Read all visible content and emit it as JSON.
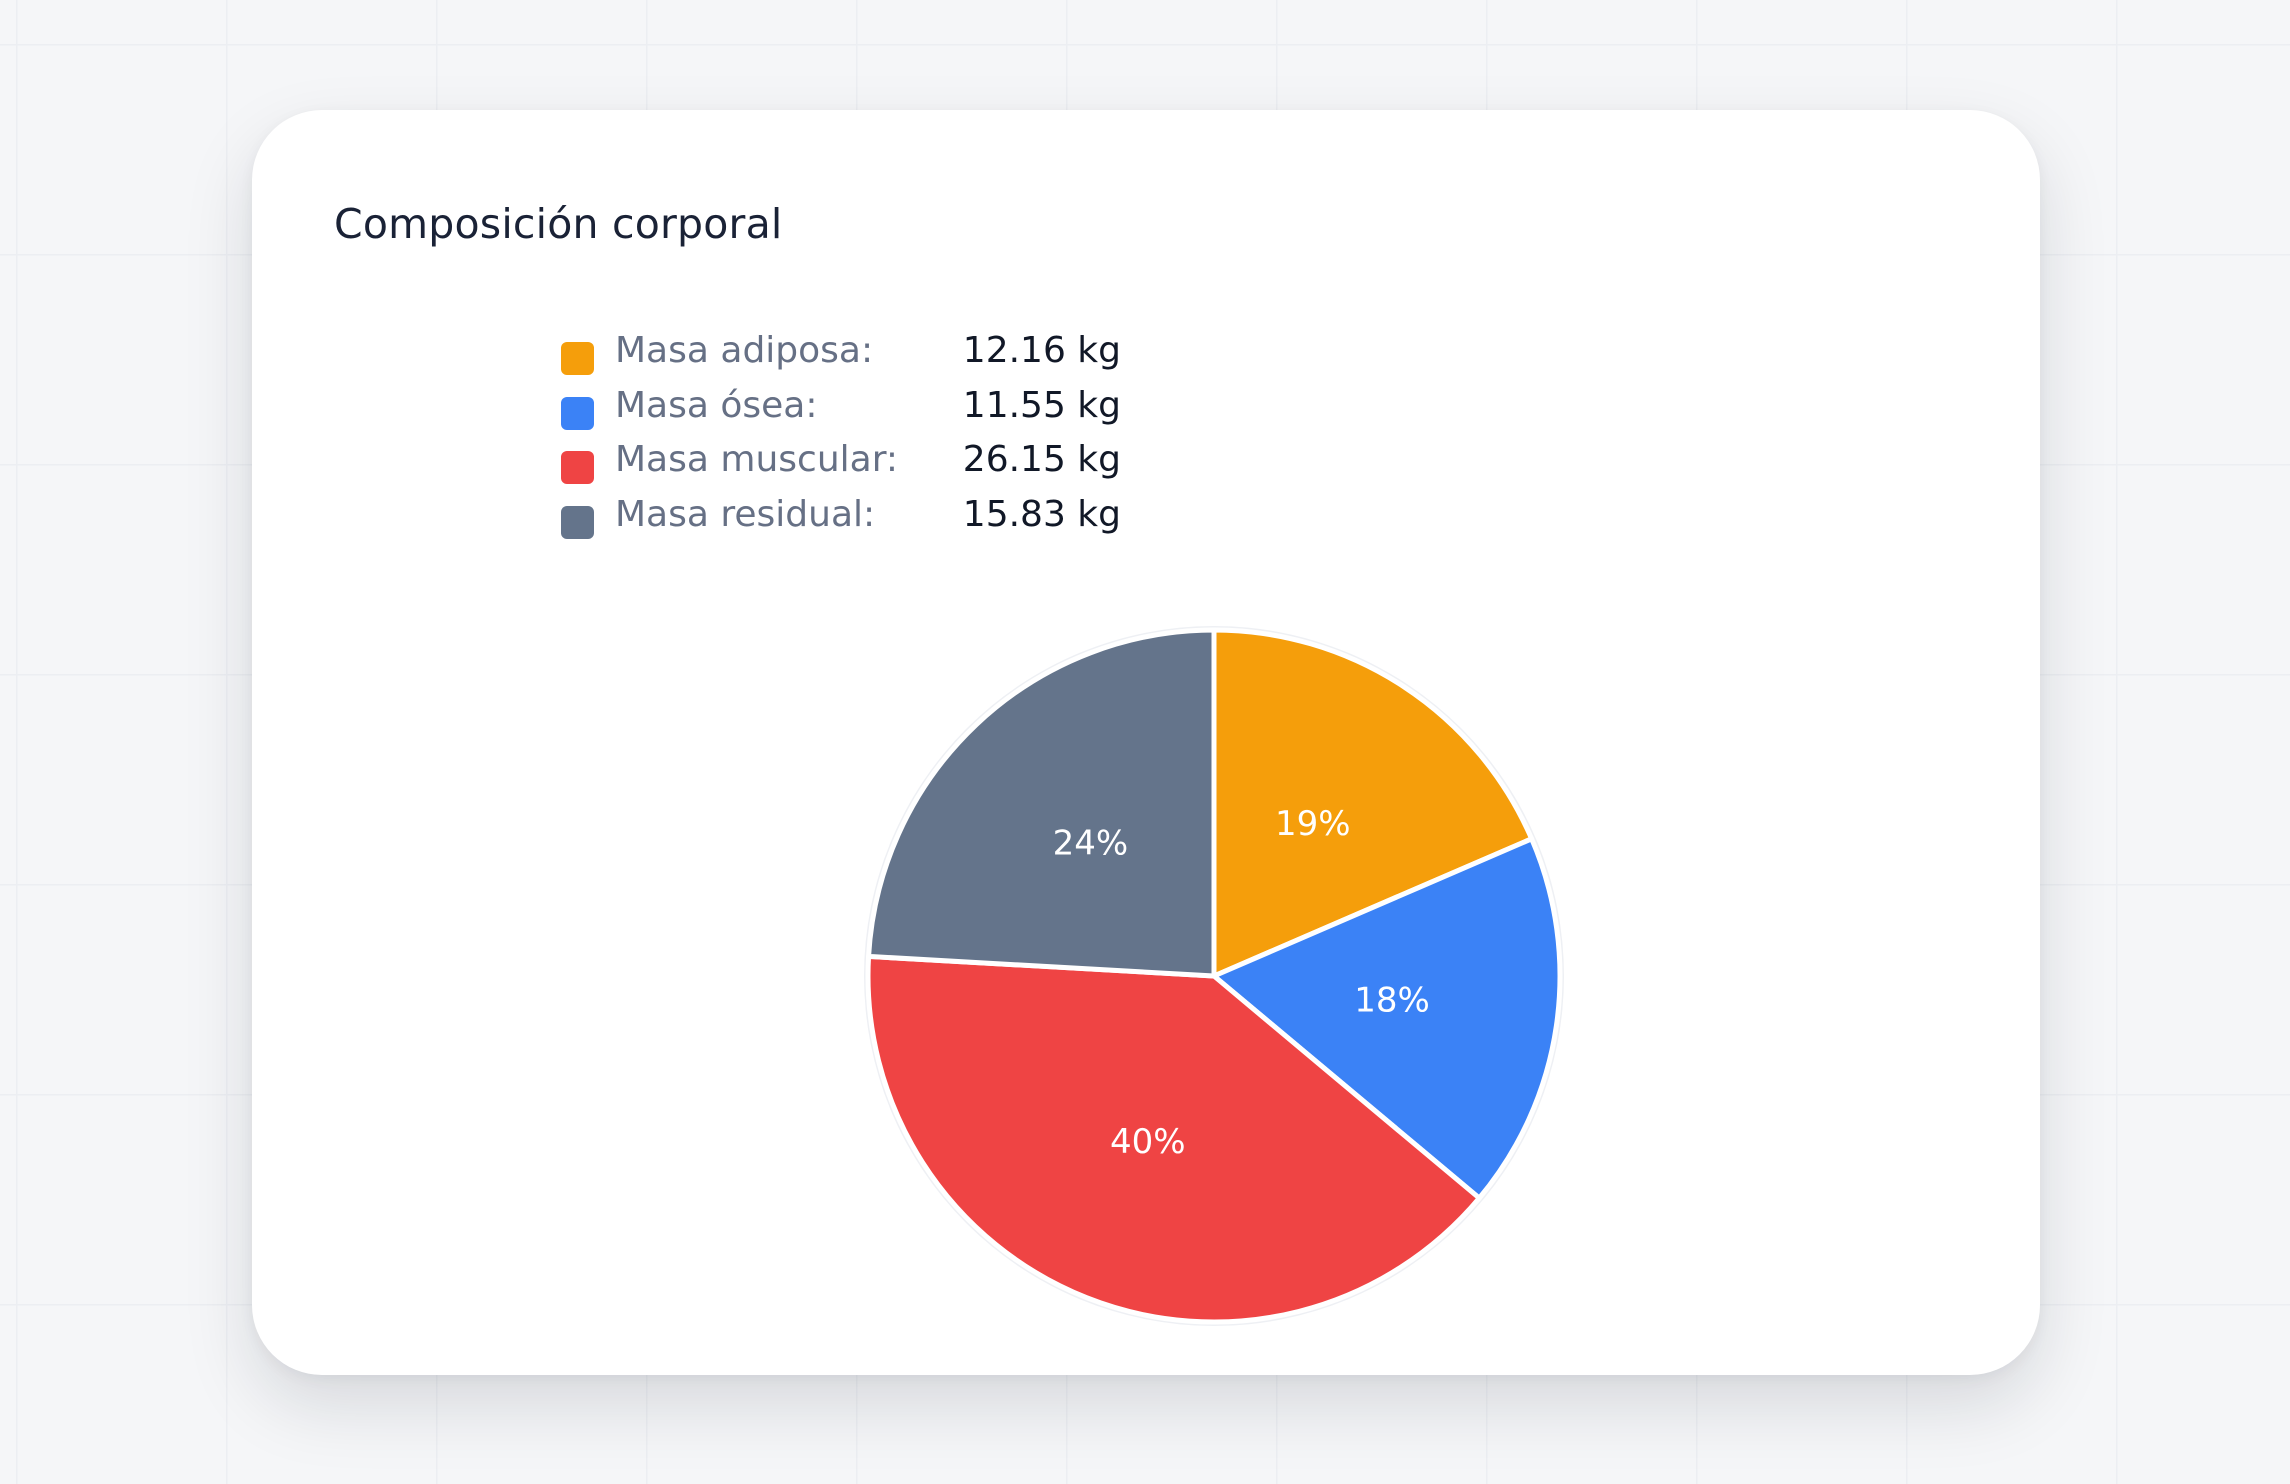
{
  "card": {
    "title": "Composición corporal"
  },
  "legend": [
    {
      "label": "Masa adiposa:",
      "value": "12.16 kg",
      "color": "#f59e0b"
    },
    {
      "label": "Masa ósea:",
      "value": "11.55 kg",
      "color": "#3b82f6"
    },
    {
      "label": "Masa muscular:",
      "value": "26.15 kg",
      "color": "#ef4444"
    },
    {
      "label": "Masa residual:",
      "value": "15.83 kg",
      "color": "#64748b"
    }
  ],
  "chart_data": {
    "type": "pie",
    "title": "Composición corporal",
    "unit": "kg",
    "categories": [
      "Masa adiposa",
      "Masa ósea",
      "Masa muscular",
      "Masa residual"
    ],
    "values": [
      12.16,
      11.55,
      26.15,
      15.83
    ],
    "percent_labels": [
      "19%",
      "18%",
      "40%",
      "24%"
    ],
    "colors": [
      "#f59e0b",
      "#3b82f6",
      "#ef4444",
      "#64748b"
    ],
    "start_angle": "top (12 o'clock), clockwise",
    "legend_placement": "top-left"
  }
}
